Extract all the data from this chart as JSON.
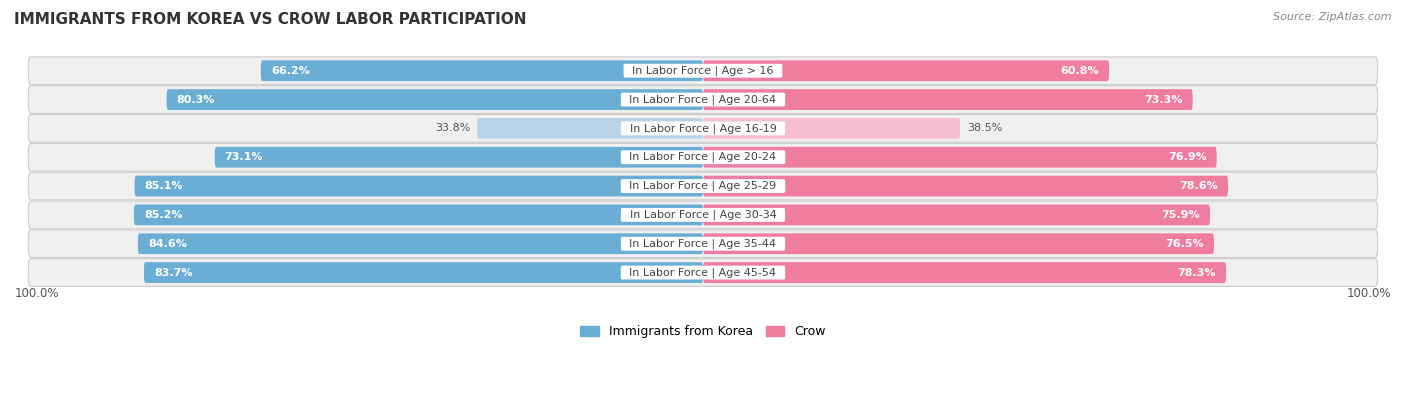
{
  "title": "IMMIGRANTS FROM KOREA VS CROW LABOR PARTICIPATION",
  "source": "Source: ZipAtlas.com",
  "categories": [
    "In Labor Force | Age > 16",
    "In Labor Force | Age 20-64",
    "In Labor Force | Age 16-19",
    "In Labor Force | Age 20-24",
    "In Labor Force | Age 25-29",
    "In Labor Force | Age 30-34",
    "In Labor Force | Age 35-44",
    "In Labor Force | Age 45-54"
  ],
  "korea_values": [
    66.2,
    80.3,
    33.8,
    73.1,
    85.1,
    85.2,
    84.6,
    83.7
  ],
  "crow_values": [
    60.8,
    73.3,
    38.5,
    76.9,
    78.6,
    75.9,
    76.5,
    78.3
  ],
  "korea_color_strong": "#6aaed6",
  "korea_color_light": "#b8d4e8",
  "crow_color_strong": "#f07ca0",
  "crow_color_light": "#f7bdd0",
  "row_bg_color": "#e8e8e8",
  "row_inner_color": "#f5f5f5",
  "max_value": 100.0,
  "bar_height": 0.72,
  "legend_korea": "Immigrants from Korea",
  "legend_crow": "Crow",
  "threshold": 55.0,
  "title_fontsize": 11,
  "label_fontsize": 8,
  "cat_fontsize": 8
}
